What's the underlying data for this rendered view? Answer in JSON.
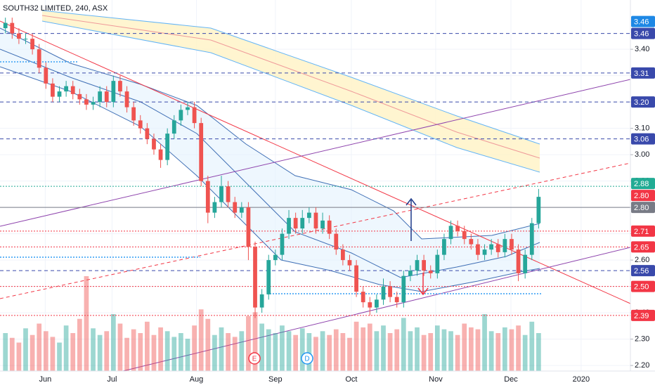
{
  "chart_data": {
    "type": "candlestick",
    "title": "SOUTH32 LIMITED, 240, ASX",
    "candles": {
      "open": [
        3.48,
        3.5,
        3.46,
        3.44,
        3.44,
        3.4,
        3.33,
        3.27,
        3.22,
        3.24,
        3.26,
        3.23,
        3.21,
        3.19,
        3.2,
        3.24,
        3.2,
        3.28,
        3.24,
        3.18,
        3.13,
        3.1,
        3.06,
        3.02,
        2.98,
        3.08,
        3.13,
        3.17,
        3.18,
        3.12,
        2.9,
        2.78,
        2.82,
        2.88,
        2.82,
        2.78,
        2.8,
        2.65,
        2.42,
        2.47,
        2.6,
        2.62,
        2.7,
        2.76,
        2.72,
        2.76,
        2.78,
        2.72,
        2.75,
        2.7,
        2.64,
        2.6,
        2.58,
        2.48,
        2.44,
        2.42,
        2.45,
        2.5,
        2.46,
        2.44,
        2.54,
        2.56,
        2.6,
        2.56,
        2.55,
        2.62,
        2.68,
        2.73,
        2.71,
        2.68,
        2.66,
        2.62,
        2.64,
        2.66,
        2.63,
        2.68,
        2.64,
        2.55,
        2.62,
        2.74
      ],
      "high": [
        3.52,
        3.52,
        3.48,
        3.46,
        3.46,
        3.42,
        3.35,
        3.29,
        3.26,
        3.28,
        3.28,
        3.25,
        3.23,
        3.22,
        3.26,
        3.26,
        3.3,
        3.3,
        3.26,
        3.2,
        3.15,
        3.12,
        3.08,
        3.04,
        3.1,
        3.15,
        3.19,
        3.2,
        3.2,
        3.14,
        2.92,
        2.84,
        2.92,
        2.9,
        2.84,
        2.82,
        2.82,
        2.67,
        2.49,
        2.62,
        2.64,
        2.72,
        2.79,
        2.78,
        2.79,
        2.8,
        2.8,
        2.78,
        2.77,
        2.72,
        2.66,
        2.62,
        2.6,
        2.5,
        2.46,
        2.47,
        2.53,
        2.52,
        2.48,
        2.56,
        2.58,
        2.62,
        2.62,
        2.58,
        2.64,
        2.7,
        2.75,
        2.75,
        2.73,
        2.7,
        2.68,
        2.66,
        2.68,
        2.68,
        2.7,
        2.7,
        2.66,
        2.64,
        2.76,
        2.87
      ],
      "low": [
        3.46,
        3.44,
        3.42,
        3.42,
        3.38,
        3.31,
        3.25,
        3.2,
        3.2,
        3.22,
        3.21,
        3.19,
        3.17,
        3.17,
        3.18,
        3.18,
        3.18,
        3.22,
        3.16,
        3.11,
        3.08,
        3.04,
        3.0,
        2.95,
        2.96,
        3.06,
        3.11,
        3.15,
        3.1,
        2.88,
        2.74,
        2.76,
        2.8,
        2.8,
        2.76,
        2.76,
        2.6,
        2.38,
        2.4,
        2.45,
        2.58,
        2.6,
        2.68,
        2.7,
        2.7,
        2.74,
        2.7,
        2.7,
        2.68,
        2.62,
        2.58,
        2.56,
        2.46,
        2.42,
        2.39,
        2.4,
        2.43,
        2.44,
        2.42,
        2.42,
        2.52,
        2.54,
        2.54,
        2.53,
        2.53,
        2.6,
        2.66,
        2.69,
        2.66,
        2.64,
        2.6,
        2.6,
        2.62,
        2.61,
        2.61,
        2.62,
        2.52,
        2.53,
        2.6,
        2.72
      ],
      "close": [
        3.5,
        3.46,
        3.44,
        3.44,
        3.4,
        3.33,
        3.27,
        3.22,
        3.24,
        3.26,
        3.23,
        3.21,
        3.19,
        3.2,
        3.24,
        3.2,
        3.28,
        3.24,
        3.18,
        3.13,
        3.1,
        3.06,
        3.02,
        2.98,
        3.08,
        3.13,
        3.17,
        3.18,
        3.12,
        2.9,
        2.78,
        2.82,
        2.88,
        2.82,
        2.78,
        2.8,
        2.65,
        2.42,
        2.47,
        2.6,
        2.62,
        2.7,
        2.76,
        2.72,
        2.76,
        2.78,
        2.72,
        2.75,
        2.7,
        2.64,
        2.6,
        2.58,
        2.48,
        2.44,
        2.42,
        2.45,
        2.5,
        2.46,
        2.44,
        2.54,
        2.56,
        2.6,
        2.56,
        2.55,
        2.62,
        2.68,
        2.73,
        2.71,
        2.68,
        2.66,
        2.62,
        2.64,
        2.66,
        2.63,
        2.68,
        2.64,
        2.55,
        2.62,
        2.74,
        2.84
      ],
      "volume": [
        40,
        35,
        30,
        45,
        38,
        50,
        42,
        36,
        30,
        48,
        40,
        55,
        100,
        45,
        38,
        42,
        60,
        50,
        35,
        44,
        40,
        52,
        38,
        46,
        42,
        36,
        40,
        34,
        48,
        65,
        55,
        38,
        46,
        40,
        36,
        42,
        58,
        62,
        50,
        44,
        40,
        48,
        42,
        38,
        45,
        40,
        36,
        42,
        38,
        44,
        40,
        35,
        52,
        46,
        50,
        42,
        48,
        40,
        44,
        56,
        42,
        46,
        38,
        40,
        48,
        44,
        42,
        38,
        50,
        46,
        44,
        60,
        42,
        40,
        46,
        44,
        48,
        38,
        52,
        40
      ]
    },
    "xlim": [
      -0.8,
      92.6
    ],
    "xticks": [
      {
        "value": 5.9,
        "label": "Jun"
      },
      {
        "value": 15.8,
        "label": "Jul"
      },
      {
        "value": 28.3,
        "label": "Aug"
      },
      {
        "value": 40,
        "label": "Sep"
      },
      {
        "value": 51.25,
        "label": "Oct"
      },
      {
        "value": 63.75,
        "label": "Nov"
      },
      {
        "value": 74.9,
        "label": "Dec"
      },
      {
        "value": 85.3,
        "label": "2020"
      }
    ],
    "ylim": [
      2.179,
      3.587
    ],
    "yticks": [
      {
        "value": 2.2,
        "label": "2.20"
      },
      {
        "value": 2.3,
        "label": "2.30"
      },
      {
        "value": 2.4,
        "label": "2.40"
      },
      {
        "value": 2.5,
        "label": "2.50"
      },
      {
        "value": 2.6,
        "label": "2.60"
      },
      {
        "value": 2.7,
        "label": "2.70"
      },
      {
        "value": 2.8,
        "label": "2.80"
      },
      {
        "value": 2.9,
        "label": "2.90"
      },
      {
        "value": 3.0,
        "label": "3.00"
      },
      {
        "value": 3.1,
        "label": "3.10"
      },
      {
        "value": 3.2,
        "label": "3.20"
      },
      {
        "value": 3.3,
        "label": "3.30"
      },
      {
        "value": 3.4,
        "label": "3.40"
      }
    ],
    "grid": true,
    "up_color": "#26a69a",
    "down_color": "#ef5350",
    "levels": [
      {
        "value": 3.46,
        "label": "3.46",
        "color": "#1e88e5",
        "line": null
      },
      {
        "value": 3.46,
        "label": "3.46",
        "color": "#3949ab",
        "line": "dashed"
      },
      {
        "value": 3.31,
        "label": "3.31",
        "color": "#3949ab",
        "line": "dashed"
      },
      {
        "value": 3.2,
        "label": "3.20",
        "color": "#3949ab",
        "line": "dashed"
      },
      {
        "value": 3.06,
        "label": "3.06",
        "color": "#3949ab",
        "line": "dashed"
      },
      {
        "value": 2.88,
        "label": "2.88",
        "color": "#22ab94",
        "line": "dotted"
      },
      {
        "value": 2.8,
        "label": "2.80",
        "color": "#f23645",
        "line": null
      },
      {
        "value": 2.8,
        "label": "2.80",
        "color": "#787b86",
        "line": "solid"
      },
      {
        "value": 2.71,
        "label": "2.71",
        "color": "#f23645",
        "line": "dotted"
      },
      {
        "value": 2.65,
        "label": "2.65",
        "color": "#f23645",
        "line": "dotted"
      },
      {
        "value": 2.56,
        "label": "2.56",
        "color": "#3949ab",
        "line": "dashed"
      },
      {
        "value": 2.5,
        "label": "2.50",
        "color": "#f23645",
        "line": "dotted"
      },
      {
        "value": 2.39,
        "label": "2.39",
        "color": "#f23645",
        "line": "dotted"
      }
    ],
    "events": [
      {
        "label": "E",
        "x": 36.9,
        "color": "#f23645"
      },
      {
        "label": "D",
        "x": 44.7,
        "color": "#2196f3"
      }
    ]
  }
}
